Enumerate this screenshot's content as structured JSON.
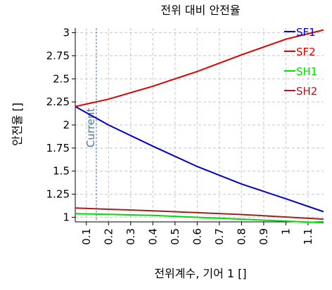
{
  "chart_data": {
    "type": "line",
    "title": "전위 대비 안전율",
    "xlabel": "전위계수, 기어 1 []",
    "ylabel": "안전율 []",
    "xlim": [
      0.05,
      1.17
    ],
    "ylim": [
      0.95,
      3.05
    ],
    "x_ticks": [
      0.1,
      0.2,
      0.3,
      0.4,
      0.5,
      0.6,
      0.7,
      0.8,
      0.9,
      1.0,
      1.1
    ],
    "x_tick_labels": [
      "0.1",
      "0.2",
      "0.3",
      "0.4",
      "0.5",
      "0.6",
      "0.7",
      "0.8",
      "0.9",
      "1",
      "1.1"
    ],
    "y_ticks": [
      1,
      1.25,
      1.5,
      1.75,
      2,
      2.25,
      2.5,
      2.75,
      3
    ],
    "y_tick_labels": [
      "1",
      "1.25",
      "1.5",
      "1.75",
      "2",
      "2.25",
      "2.5",
      "2.75",
      "3"
    ],
    "grid": true,
    "legend_position": "top-right",
    "current": {
      "x": 0.145,
      "label": "Current",
      "color": "#4a78a8"
    },
    "series": [
      {
        "name": "SF1",
        "color": "#0000cc",
        "x": [
          0.05,
          0.2,
          0.4,
          0.6,
          0.8,
          1.0,
          1.17
        ],
        "values": [
          2.2,
          2.0,
          1.77,
          1.55,
          1.36,
          1.2,
          1.06
        ]
      },
      {
        "name": "SF2",
        "color": "#dd0000",
        "x": [
          0.05,
          0.2,
          0.4,
          0.6,
          0.8,
          1.0,
          1.17
        ],
        "values": [
          2.2,
          2.28,
          2.42,
          2.58,
          2.76,
          2.93,
          3.03
        ]
      },
      {
        "name": "SH1",
        "color": "#00dd00",
        "x": [
          0.05,
          0.4,
          0.8,
          1.17
        ],
        "values": [
          1.04,
          1.02,
          0.98,
          0.94
        ]
      },
      {
        "name": "SH2",
        "color": "#a02020",
        "x": [
          0.05,
          0.4,
          0.8,
          1.17
        ],
        "values": [
          1.1,
          1.07,
          1.03,
          0.98
        ]
      }
    ]
  }
}
